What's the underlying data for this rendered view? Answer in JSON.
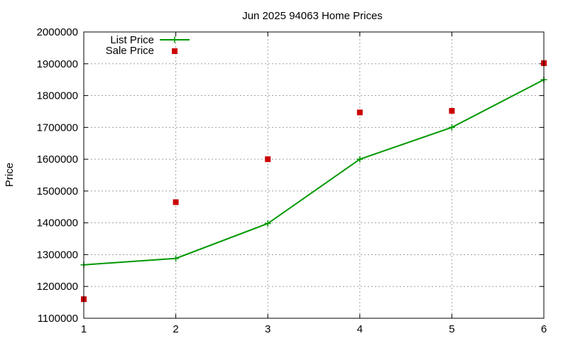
{
  "chart_data": {
    "type": "line",
    "title": "Jun 2025 94063 Home Prices",
    "xlabel": "",
    "ylabel": "Price",
    "xlim": [
      1,
      6
    ],
    "ylim": [
      1100000,
      2000000
    ],
    "x_ticks": [
      "1",
      "2",
      "3",
      "4",
      "5",
      "6"
    ],
    "y_ticks": [
      "1100000",
      "1200000",
      "1300000",
      "1400000",
      "1500000",
      "1600000",
      "1700000",
      "1800000",
      "1900000",
      "2000000"
    ],
    "grid": true,
    "legend_position": "top-left",
    "series": [
      {
        "name": "List Price",
        "style": "line with plus markers",
        "color": "#009900",
        "x": [
          1,
          2,
          3,
          4,
          5,
          6
        ],
        "values": [
          1268000,
          1288000,
          1398000,
          1600000,
          1700000,
          1850000
        ]
      },
      {
        "name": "Sale Price",
        "style": "square markers",
        "color": "#cc0000",
        "x": [
          1,
          2,
          3,
          4,
          5,
          6
        ],
        "values": [
          1160000,
          1465000,
          1600000,
          1747000,
          1752000,
          1902000
        ]
      }
    ]
  }
}
